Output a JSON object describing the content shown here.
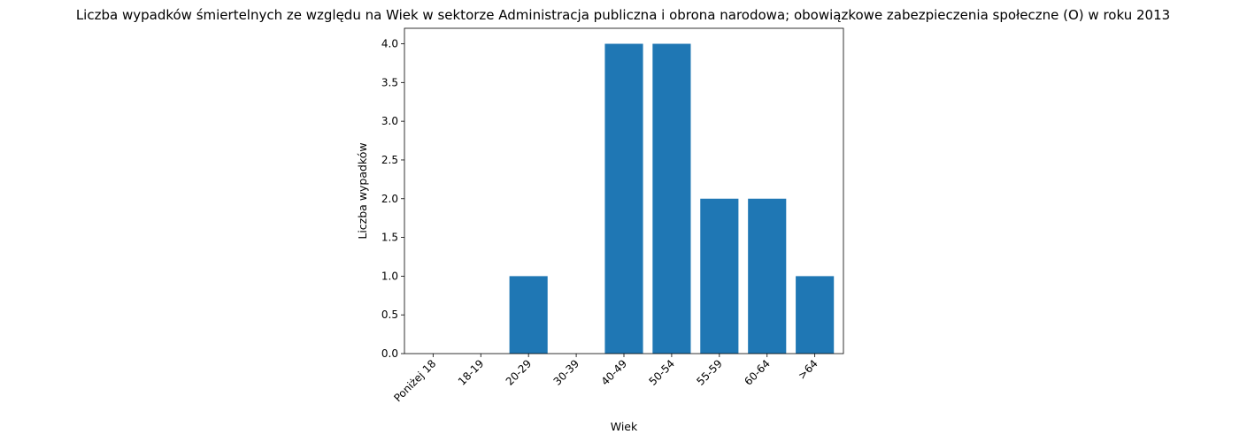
{
  "chart_data": {
    "type": "bar",
    "title": "Liczba wypadków śmiertelnych ze względu na Wiek w sektorze Administracja publiczna i obrona narodowa; obowiązkowe zabezpieczenia społeczne  (O)  w roku 2013",
    "xlabel": "Wiek",
    "ylabel": "Liczba wypadków",
    "categories": [
      "Poniżej 18",
      "18-19",
      "20-29",
      "30-39",
      "40-49",
      "50-54",
      "55-59",
      "60-64",
      ">64"
    ],
    "values": [
      0,
      0,
      1,
      0,
      4,
      4,
      2,
      2,
      1
    ],
    "ylim": [
      0,
      4.2
    ],
    "yticks": [
      0.0,
      0.5,
      1.0,
      1.5,
      2.0,
      2.5,
      3.0,
      3.5,
      4.0
    ],
    "ytick_labels": [
      "0.0",
      "0.5",
      "1.0",
      "1.5",
      "2.0",
      "2.5",
      "3.0",
      "3.5",
      "4.0"
    ],
    "grid": false,
    "bar_color": "#1f77b4"
  }
}
